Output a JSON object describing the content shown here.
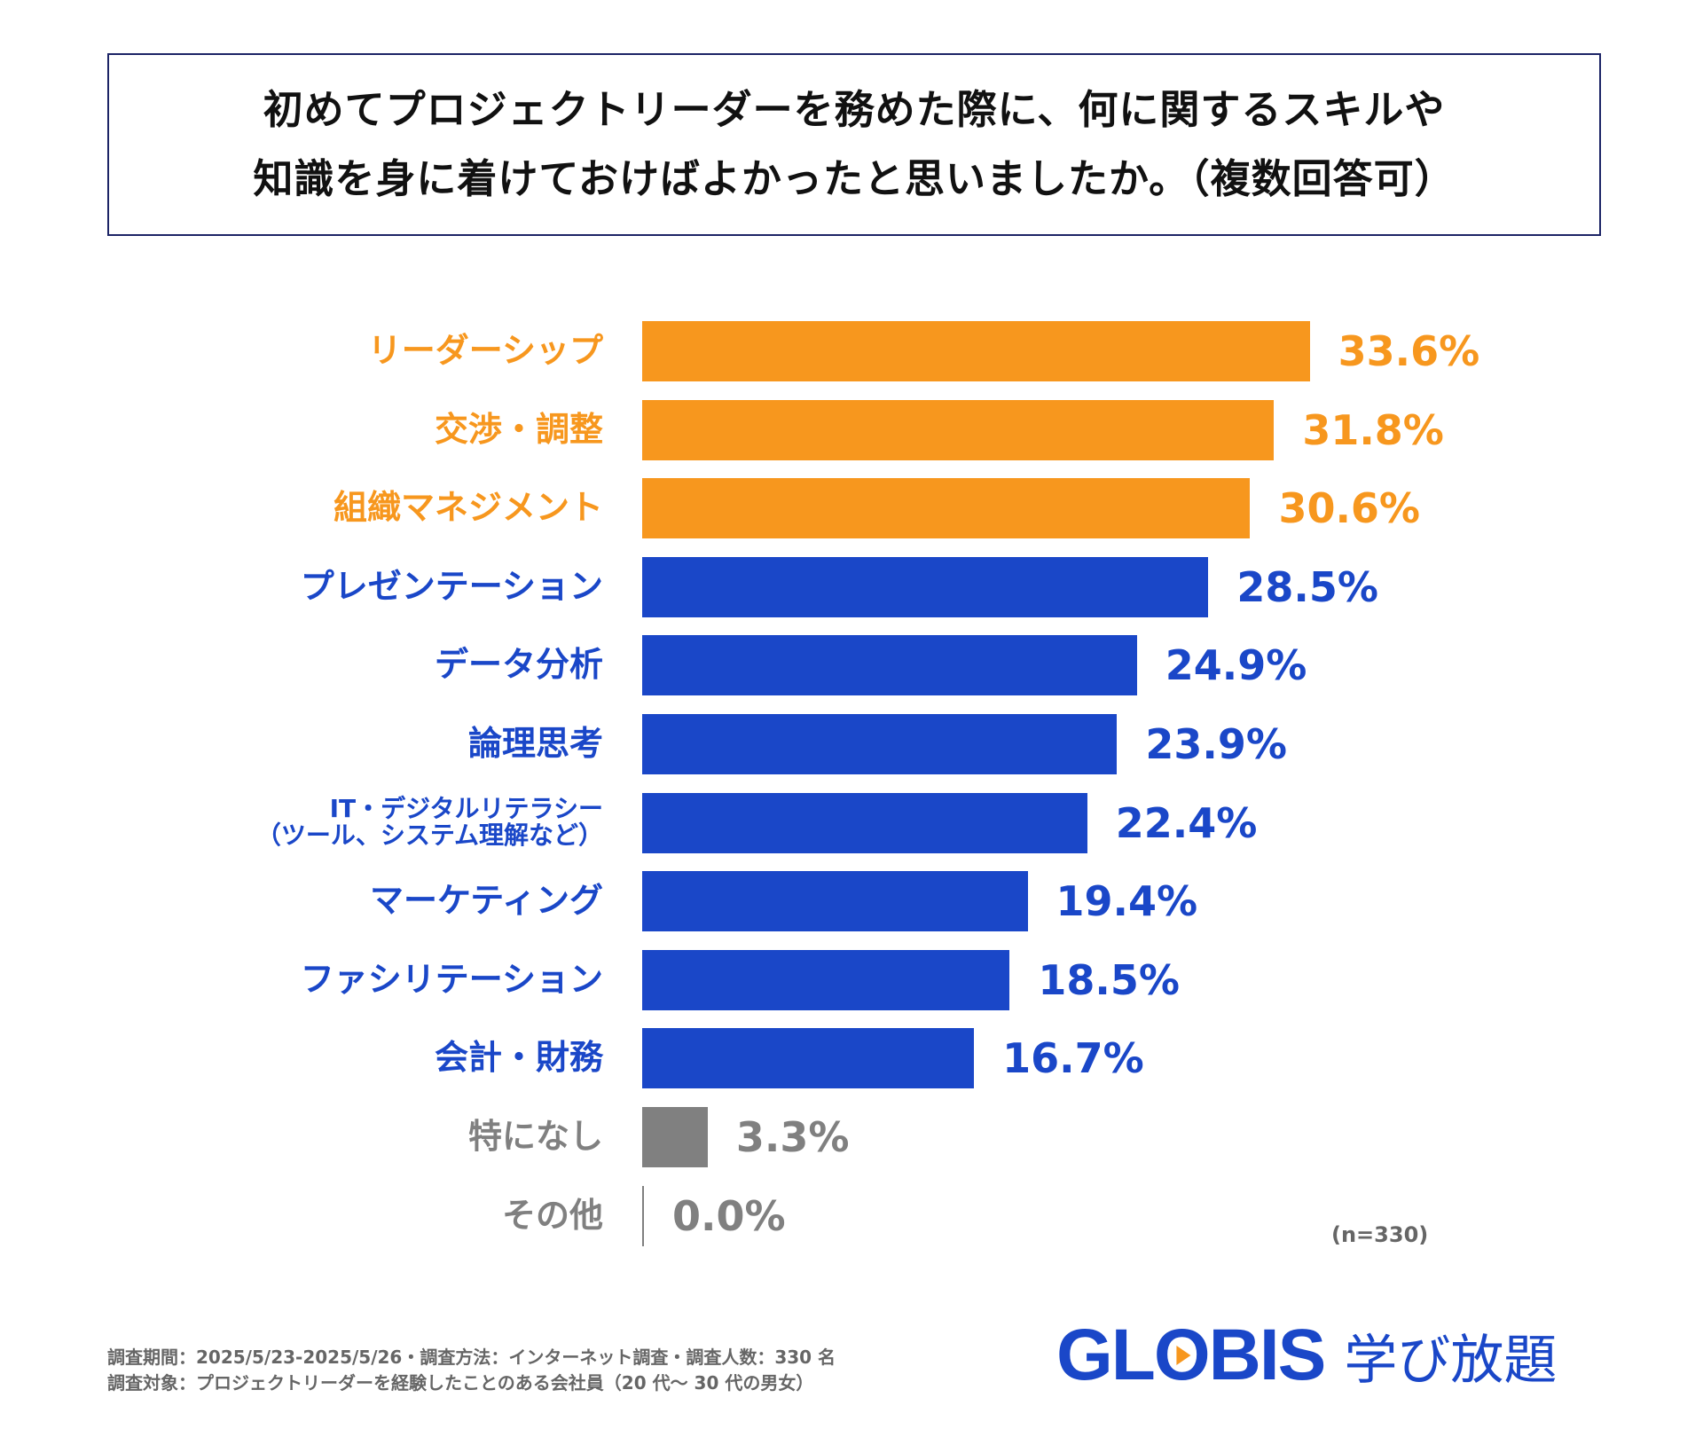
{
  "title": {
    "line1": "初めてプロジェクトリーダーを務めた際に、何に関するスキルや",
    "line2": "知識を身に着けておけばよかったと思いましたか。（複数回答可）"
  },
  "chart_data": {
    "type": "bar",
    "orientation": "horizontal",
    "categories": [
      "リーダーシップ",
      "交渉・調整",
      "組織マネジメント",
      "プレゼンテーション",
      "データ分析",
      "論理思考",
      "IT・デジタルリテラシー（ツール、システム理解など）",
      "マーケティング",
      "ファシリテーション",
      "会計・財務",
      "特になし",
      "その他"
    ],
    "category_lines": [
      [
        "リーダーシップ"
      ],
      [
        "交渉・調整"
      ],
      [
        "組織マネジメント"
      ],
      [
        "プレゼンテーション"
      ],
      [
        "データ分析"
      ],
      [
        "論理思考"
      ],
      [
        "IT・デジタルリテラシー",
        "（ツール、システム理解など）"
      ],
      [
        "マーケティング"
      ],
      [
        "ファシリテーション"
      ],
      [
        "会計・財務"
      ],
      [
        "特になし"
      ],
      [
        "その他"
      ]
    ],
    "values": [
      33.6,
      31.8,
      30.6,
      28.5,
      24.9,
      23.9,
      22.4,
      19.4,
      18.5,
      16.7,
      3.3,
      0.0
    ],
    "value_labels": [
      "33.6%",
      "31.8%",
      "30.6%",
      "28.5%",
      "24.9%",
      "23.9%",
      "22.4%",
      "19.4%",
      "18.5%",
      "16.7%",
      "3.3%",
      "0.0%"
    ],
    "color_groups": [
      "orange",
      "orange",
      "orange",
      "blue",
      "blue",
      "blue",
      "blue",
      "blue",
      "blue",
      "blue",
      "gray",
      "gray"
    ],
    "unit": "%",
    "grid": false,
    "legend": "none",
    "sample_note": "(n=330)"
  },
  "colors": {
    "orange": "#f7971e",
    "blue": "#1a47c8",
    "gray": "#808080",
    "title_border": "#1c2466"
  },
  "footer": {
    "line1": "調査期間：2025/5/23-2025/5/26・調査方法：インターネット調査・調査人数：330 名",
    "line2": "調査対象：プロジェクトリーダーを経験したことのある会社員（20 代～ 30 代の男女）"
  },
  "logo": {
    "brand": "GLOBIS",
    "product": "学び放題"
  }
}
